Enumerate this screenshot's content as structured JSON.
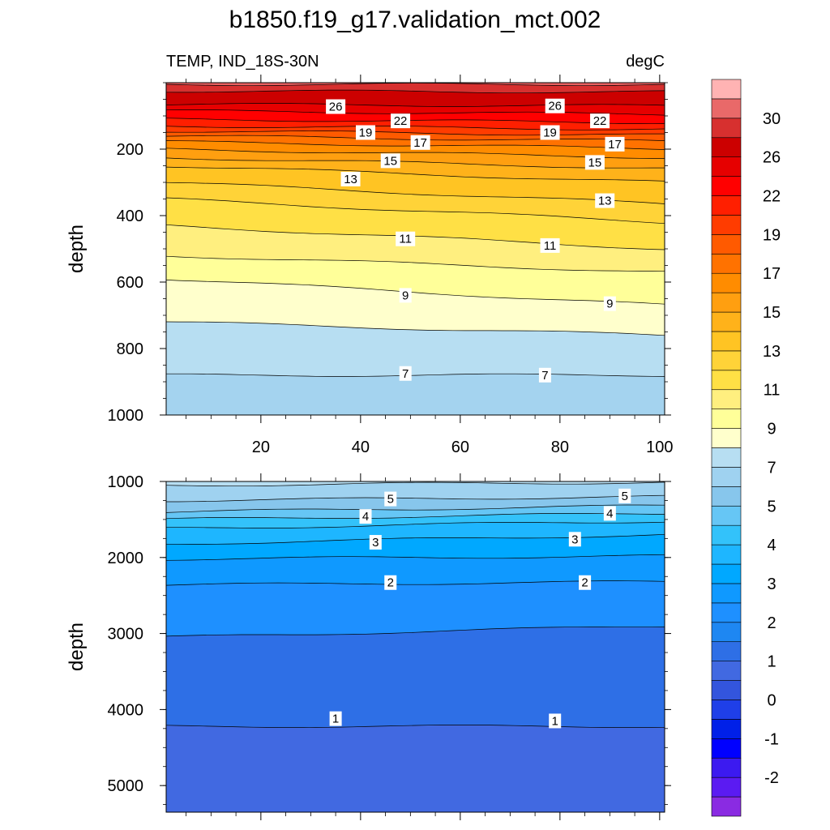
{
  "title": "b1850.f19_g17.validation_mct.002",
  "chart_data": {
    "type": "contour",
    "variable_label": "TEMP, IND_18S-30N",
    "units_label": "degC",
    "xlim": [
      1,
      101
    ],
    "x_ticks": [
      "20",
      "40",
      "60",
      "80",
      "100"
    ],
    "colors": {
      "line": "#000000",
      "label_box": "#ffffff"
    },
    "colorbar": {
      "levels": [
        -3,
        -2.5,
        -2,
        -1.5,
        -1,
        -0.5,
        0,
        0.5,
        1,
        1.5,
        2,
        2.5,
        3,
        3.5,
        4,
        4.5,
        5,
        6,
        7,
        8,
        9,
        10,
        11,
        12,
        13,
        14,
        15,
        16,
        17,
        18,
        19,
        20,
        22,
        24,
        26,
        28,
        30,
        32
      ],
      "colors": [
        "#8a2be2",
        "#5b1bf2",
        "#3c1af0",
        "#0000ff",
        "#0020e8",
        "#1f3fe8",
        "#3355dd",
        "#4169e1",
        "#2e6fe6",
        "#1e87f2",
        "#1e90ff",
        "#0f99ff",
        "#00a8ff",
        "#1eb6ff",
        "#33c2fa",
        "#66c6f5",
        "#87c6ec",
        "#9fd2f0",
        "#b7def2",
        "#ffffcc",
        "#ffff99",
        "#ffef7f",
        "#ffe045",
        "#ffd338",
        "#ffc423",
        "#ffb21a",
        "#ff9f10",
        "#ff8c00",
        "#ff7200",
        "#ff5a00",
        "#ff3c00",
        "#ff1f00",
        "#ff0000",
        "#e60000",
        "#cc0000",
        "#d7302f",
        "#e96969",
        "#ffb3b3"
      ],
      "labels": [
        "-2",
        "-1",
        "0",
        "1",
        "2",
        "3",
        "4",
        "5",
        "7",
        "9",
        "11",
        "13",
        "15",
        "17",
        "19",
        "22",
        "26",
        "30"
      ],
      "label_values": [
        -2,
        -1,
        0,
        1,
        2,
        3,
        4,
        5,
        7,
        9,
        11,
        13,
        15,
        17,
        19,
        22,
        26,
        30
      ]
    },
    "panels": [
      {
        "name": "upper",
        "ylabel": "depth",
        "ylim": [
          0,
          1000
        ],
        "y_ticks": [
          200,
          400,
          600,
          800,
          1000
        ],
        "y_tick_labels": [
          "200",
          "400",
          "600",
          "800",
          "1000"
        ],
        "show_x_tick_labels": true,
        "top_fill_color": "#e86060",
        "bands": [
          {
            "value": 30,
            "color": "#d7302f",
            "left_depth": 5,
            "right_depth": 5
          },
          {
            "value": 28,
            "color": "#cc0000",
            "left_depth": 25,
            "right_depth": 28
          },
          {
            "value": 26,
            "color": "#e60000",
            "left_depth": 65,
            "right_depth": 70
          },
          {
            "value": 24,
            "color": "#ff0000",
            "left_depth": 85,
            "right_depth": 95
          },
          {
            "value": 22,
            "color": "#ff1f00",
            "left_depth": 110,
            "right_depth": 120
          },
          {
            "value": 20,
            "color": "#ff3c00",
            "left_depth": 130,
            "right_depth": 140
          },
          {
            "value": 19,
            "color": "#ff5a00",
            "left_depth": 145,
            "right_depth": 158
          },
          {
            "value": 18,
            "color": "#ff7200",
            "left_depth": 160,
            "right_depth": 176
          },
          {
            "value": 17,
            "color": "#ff8c00",
            "left_depth": 178,
            "right_depth": 198
          },
          {
            "value": 16,
            "color": "#ff9f10",
            "left_depth": 200,
            "right_depth": 225
          },
          {
            "value": 15,
            "color": "#ffb21a",
            "left_depth": 225,
            "right_depth": 258
          },
          {
            "value": 14,
            "color": "#ffc423",
            "left_depth": 250,
            "right_depth": 300
          },
          {
            "value": 13,
            "color": "#ffd338",
            "left_depth": 300,
            "right_depth": 365
          },
          {
            "value": 12,
            "color": "#ffe045",
            "left_depth": 350,
            "right_depth": 420
          },
          {
            "value": 11,
            "color": "#ffef7f",
            "left_depth": 430,
            "right_depth": 500
          },
          {
            "value": 10,
            "color": "#ffff99",
            "left_depth": 520,
            "right_depth": 570
          },
          {
            "value": 9,
            "color": "#ffffcc",
            "left_depth": 590,
            "right_depth": 670
          },
          {
            "value": 8,
            "color": "#b7def2",
            "left_depth": 720,
            "right_depth": 760
          },
          {
            "value": 7,
            "color": "#a4d3ef",
            "left_depth": 880,
            "right_depth": 880
          }
        ],
        "contour_labels": [
          {
            "text": "26",
            "x": 35,
            "depth": 72
          },
          {
            "text": "26",
            "x": 79,
            "depth": 70
          },
          {
            "text": "22",
            "x": 48,
            "depth": 115
          },
          {
            "text": "22",
            "x": 88,
            "depth": 115
          },
          {
            "text": "19",
            "x": 41,
            "depth": 150
          },
          {
            "text": "19",
            "x": 78,
            "depth": 150
          },
          {
            "text": "17",
            "x": 52,
            "depth": 180
          },
          {
            "text": "17",
            "x": 91,
            "depth": 185
          },
          {
            "text": "15",
            "x": 46,
            "depth": 235
          },
          {
            "text": "15",
            "x": 87,
            "depth": 240
          },
          {
            "text": "13",
            "x": 38,
            "depth": 290
          },
          {
            "text": "13",
            "x": 89,
            "depth": 355
          },
          {
            "text": "11",
            "x": 49,
            "depth": 470
          },
          {
            "text": "11",
            "x": 78,
            "depth": 490
          },
          {
            "text": "9",
            "x": 49,
            "depth": 640
          },
          {
            "text": "9",
            "x": 90,
            "depth": 665
          },
          {
            "text": "7",
            "x": 49,
            "depth": 875
          },
          {
            "text": "7",
            "x": 77,
            "depth": 880
          }
        ]
      },
      {
        "name": "lower",
        "ylabel": "depth",
        "ylim": [
          1000,
          5350
        ],
        "y_ticks": [
          1000,
          2000,
          3000,
          4000,
          5000
        ],
        "y_tick_labels": [
          "1000",
          "2000",
          "3000",
          "4000",
          "5000"
        ],
        "show_x_tick_labels": false,
        "top_fill_color": "#b7def2",
        "bands": [
          {
            "value": 6,
            "color": "#9fd2f0",
            "left_depth": 1050,
            "right_depth": 1010
          },
          {
            "value": 5,
            "color": "#87c6ec",
            "left_depth": 1250,
            "right_depth": 1200
          },
          {
            "value": 4.5,
            "color": "#66c6f5",
            "left_depth": 1400,
            "right_depth": 1320
          },
          {
            "value": 4,
            "color": "#33c2fa",
            "left_depth": 1500,
            "right_depth": 1420
          },
          {
            "value": 3.5,
            "color": "#1eb6ff",
            "left_depth": 1620,
            "right_depth": 1520
          },
          {
            "value": 3,
            "color": "#00a8ff",
            "left_depth": 1820,
            "right_depth": 1700
          },
          {
            "value": 2.5,
            "color": "#0f99ff",
            "left_depth": 2020,
            "right_depth": 1980
          },
          {
            "value": 2,
            "color": "#1e90ff",
            "left_depth": 2360,
            "right_depth": 2320
          },
          {
            "value": 1.5,
            "color": "#2e6fe6",
            "left_depth": 3050,
            "right_depth": 2900
          },
          {
            "value": 1,
            "color": "#4169e1",
            "left_depth": 4220,
            "right_depth": 4220
          }
        ],
        "contour_labels": [
          {
            "text": "5",
            "x": 46,
            "depth": 1230
          },
          {
            "text": "5",
            "x": 93,
            "depth": 1190
          },
          {
            "text": "4",
            "x": 41,
            "depth": 1460
          },
          {
            "text": "4",
            "x": 90,
            "depth": 1420
          },
          {
            "text": "3",
            "x": 43,
            "depth": 1800
          },
          {
            "text": "3",
            "x": 83,
            "depth": 1760
          },
          {
            "text": "2",
            "x": 46,
            "depth": 2330
          },
          {
            "text": "2",
            "x": 85,
            "depth": 2330
          },
          {
            "text": "1",
            "x": 35,
            "depth": 4120
          },
          {
            "text": "1",
            "x": 79,
            "depth": 4150
          }
        ]
      }
    ]
  }
}
